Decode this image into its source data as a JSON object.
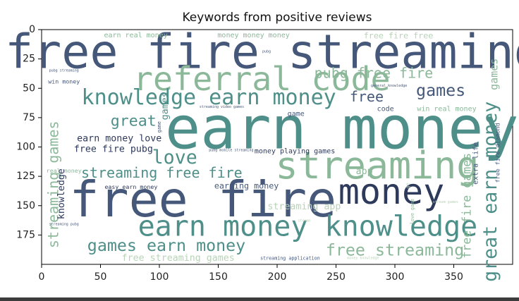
{
  "chart_data": {
    "type": "wordcloud",
    "title": "Keywords from positive reviews",
    "xlim": [
      0,
      400
    ],
    "ylim": [
      200,
      0
    ],
    "xticks": [
      0,
      50,
      100,
      150,
      200,
      250,
      300,
      350
    ],
    "yticks": [
      0,
      25,
      50,
      75,
      100,
      125,
      150,
      175
    ],
    "colors": {
      "dark_blue": "#3b4f73",
      "slate": "#45587a",
      "teal": "#4e8f89",
      "sage": "#8cb89a",
      "pale": "#b9d3b9",
      "navy": "#2e3a5c"
    },
    "words": [
      {
        "text": "free fire streaming",
        "x": 197,
        "y": 19,
        "size": 40,
        "color": "slate"
      },
      {
        "text": "earn money",
        "x": 255,
        "y": 84,
        "size": 50,
        "color": "teal"
      },
      {
        "text": "free fire",
        "x": 137,
        "y": 145,
        "size": 42,
        "color": "slate"
      },
      {
        "text": "streaming",
        "x": 285,
        "y": 116,
        "size": 32,
        "color": "sage"
      },
      {
        "text": "money",
        "x": 297,
        "y": 138,
        "size": 30,
        "color": "navy"
      },
      {
        "text": "referral code",
        "x": 187,
        "y": 42,
        "size": 28,
        "color": "sage"
      },
      {
        "text": "earn money knowledge",
        "x": 226,
        "y": 168,
        "size": 24,
        "color": "teal"
      },
      {
        "text": "knowledge earn money",
        "x": 142,
        "y": 58,
        "size": 18,
        "color": "teal"
      },
      {
        "text": "pubg free fire",
        "x": 282,
        "y": 37,
        "size": 12,
        "color": "sage"
      },
      {
        "text": "games",
        "x": 339,
        "y": 52,
        "size": 14,
        "color": "slate"
      },
      {
        "text": "free",
        "x": 276,
        "y": 57,
        "size": 12,
        "color": "slate"
      },
      {
        "text": "great",
        "x": 78,
        "y": 78,
        "size": 13,
        "color": "teal"
      },
      {
        "text": "love",
        "x": 113,
        "y": 109,
        "size": 16,
        "color": "teal"
      },
      {
        "text": "streaming free fire",
        "x": 102,
        "y": 122,
        "size": 12,
        "color": "teal"
      },
      {
        "text": "games earn money",
        "x": 106,
        "y": 184,
        "size": 14,
        "color": "teal"
      },
      {
        "text": "free streaming",
        "x": 300,
        "y": 188,
        "size": 14,
        "color": "sage"
      },
      {
        "text": "earn money love",
        "x": 66,
        "y": 93,
        "size": 8,
        "color": "navy"
      },
      {
        "text": "free fire pubg",
        "x": 61,
        "y": 102,
        "size": 8,
        "color": "navy"
      },
      {
        "text": "easy earn money",
        "x": 76,
        "y": 134,
        "size": 5,
        "color": "navy"
      },
      {
        "text": "earning money",
        "x": 174,
        "y": 133,
        "size": 7,
        "color": "slate"
      },
      {
        "text": "money playing games",
        "x": 215,
        "y": 104,
        "size": 6,
        "color": "navy"
      },
      {
        "text": "streaming app",
        "x": 223,
        "y": 151,
        "size": 8,
        "color": "pale"
      },
      {
        "text": "app",
        "x": 274,
        "y": 121,
        "size": 8,
        "color": "sage"
      },
      {
        "text": "code",
        "x": 292,
        "y": 68,
        "size": 6,
        "color": "slate"
      },
      {
        "text": "game",
        "x": 216,
        "y": 72,
        "size": 6,
        "color": "slate"
      },
      {
        "text": "win real money",
        "x": 344,
        "y": 68,
        "size": 6,
        "color": "sage"
      },
      {
        "text": "earn real money",
        "x": 80,
        "y": 5,
        "size": 6,
        "color": "sage"
      },
      {
        "text": "money money money",
        "x": 180,
        "y": 5,
        "size": 6,
        "color": "sage"
      },
      {
        "text": "free fire free",
        "x": 303,
        "y": 5,
        "size": 7,
        "color": "pale"
      },
      {
        "text": "win money",
        "x": 19,
        "y": 44,
        "size": 5,
        "color": "slate"
      },
      {
        "text": "pubg streaming",
        "x": 19,
        "y": 35,
        "size": 3,
        "color": "slate"
      },
      {
        "text": "pubg",
        "x": 191,
        "y": 19,
        "size": 3,
        "color": "slate"
      },
      {
        "text": "general knowledge",
        "x": 295,
        "y": 48,
        "size": 3,
        "color": "slate"
      },
      {
        "text": "streaming video games",
        "x": 153,
        "y": 66,
        "size": 3,
        "color": "slate"
      },
      {
        "text": "pubg mobile streaming",
        "x": 161,
        "y": 103,
        "size": 3,
        "color": "slate"
      },
      {
        "text": "real money",
        "x": 19,
        "y": 120,
        "size": 5,
        "color": "sage"
      },
      {
        "text": "streaming pubg",
        "x": 19,
        "y": 166,
        "size": 3,
        "color": "slate"
      },
      {
        "text": "free streaming games",
        "x": 116,
        "y": 195,
        "size": 8,
        "color": "pale"
      },
      {
        "text": "streaming application",
        "x": 211,
        "y": 195,
        "size": 4,
        "color": "slate"
      },
      {
        "text": "money knowledge",
        "x": 273,
        "y": 195,
        "size": 3,
        "color": "pale"
      },
      {
        "text": "stream",
        "x": 223,
        "y": 163,
        "size": 3,
        "color": "pale"
      },
      {
        "text": "streaming games",
        "x": 10,
        "y": 132,
        "size": 12,
        "color": "sage",
        "rotate": -90
      },
      {
        "text": "knowledge",
        "x": 17,
        "y": 140,
        "size": 8,
        "color": "navy",
        "rotate": -90
      },
      {
        "text": "games",
        "x": 105,
        "y": 65,
        "size": 8,
        "color": "teal",
        "rotate": -90
      },
      {
        "text": "great earn money",
        "x": 381,
        "y": 138,
        "size": 16,
        "color": "teal",
        "rotate": -90
      },
      {
        "text": "free fire games",
        "x": 361,
        "y": 150,
        "size": 10,
        "color": "sage",
        "rotate": -90
      },
      {
        "text": "extra life",
        "x": 369,
        "y": 114,
        "size": 6,
        "color": "slate",
        "rotate": -90
      },
      {
        "text": "free fire diamond",
        "x": 387,
        "y": 105,
        "size": 5,
        "color": "slate",
        "rotate": -90
      },
      {
        "text": "love game",
        "x": 315,
        "y": 155,
        "size": 4,
        "color": "sage",
        "rotate": -90
      },
      {
        "text": "games",
        "x": 384,
        "y": 38,
        "size": 9,
        "color": "sage",
        "rotate": -90
      },
      {
        "text": "stream games",
        "x": 343,
        "y": 147,
        "size": 3,
        "color": "pale"
      },
      {
        "text": "ge",
        "x": 311,
        "y": 133,
        "size": 4,
        "color": "pale",
        "rotate": -90
      },
      {
        "text": "game",
        "x": 100,
        "y": 83,
        "size": 4,
        "color": "slate",
        "rotate": -90
      }
    ]
  }
}
